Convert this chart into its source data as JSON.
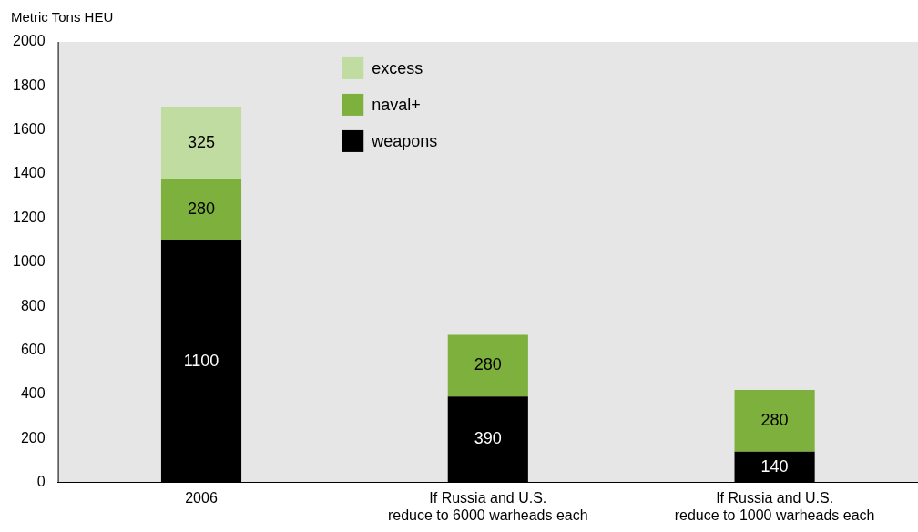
{
  "chart_data": {
    "type": "bar",
    "stacked": true,
    "ylabel": "Metric Tons HEU",
    "categories": [
      "2006",
      "If Russia and U.S.\nreduce to 6000 warheads each",
      "If Russia and U.S.\nreduce to 1000 warheads each"
    ],
    "series": [
      {
        "name": "weapons",
        "color": "#000000",
        "values": [
          1100,
          390,
          140
        ]
      },
      {
        "name": "naval+",
        "color": "#7db03c",
        "values": [
          280,
          280,
          280
        ]
      },
      {
        "name": "excess",
        "color": "#c0dca0",
        "values": [
          325,
          null,
          null
        ]
      }
    ],
    "data_labels": true,
    "ylim": [
      0,
      2000
    ],
    "yticks": [
      0,
      200,
      400,
      600,
      800,
      1000,
      1200,
      1400,
      1600,
      1800,
      2000
    ],
    "grid": false,
    "legend": "top"
  }
}
